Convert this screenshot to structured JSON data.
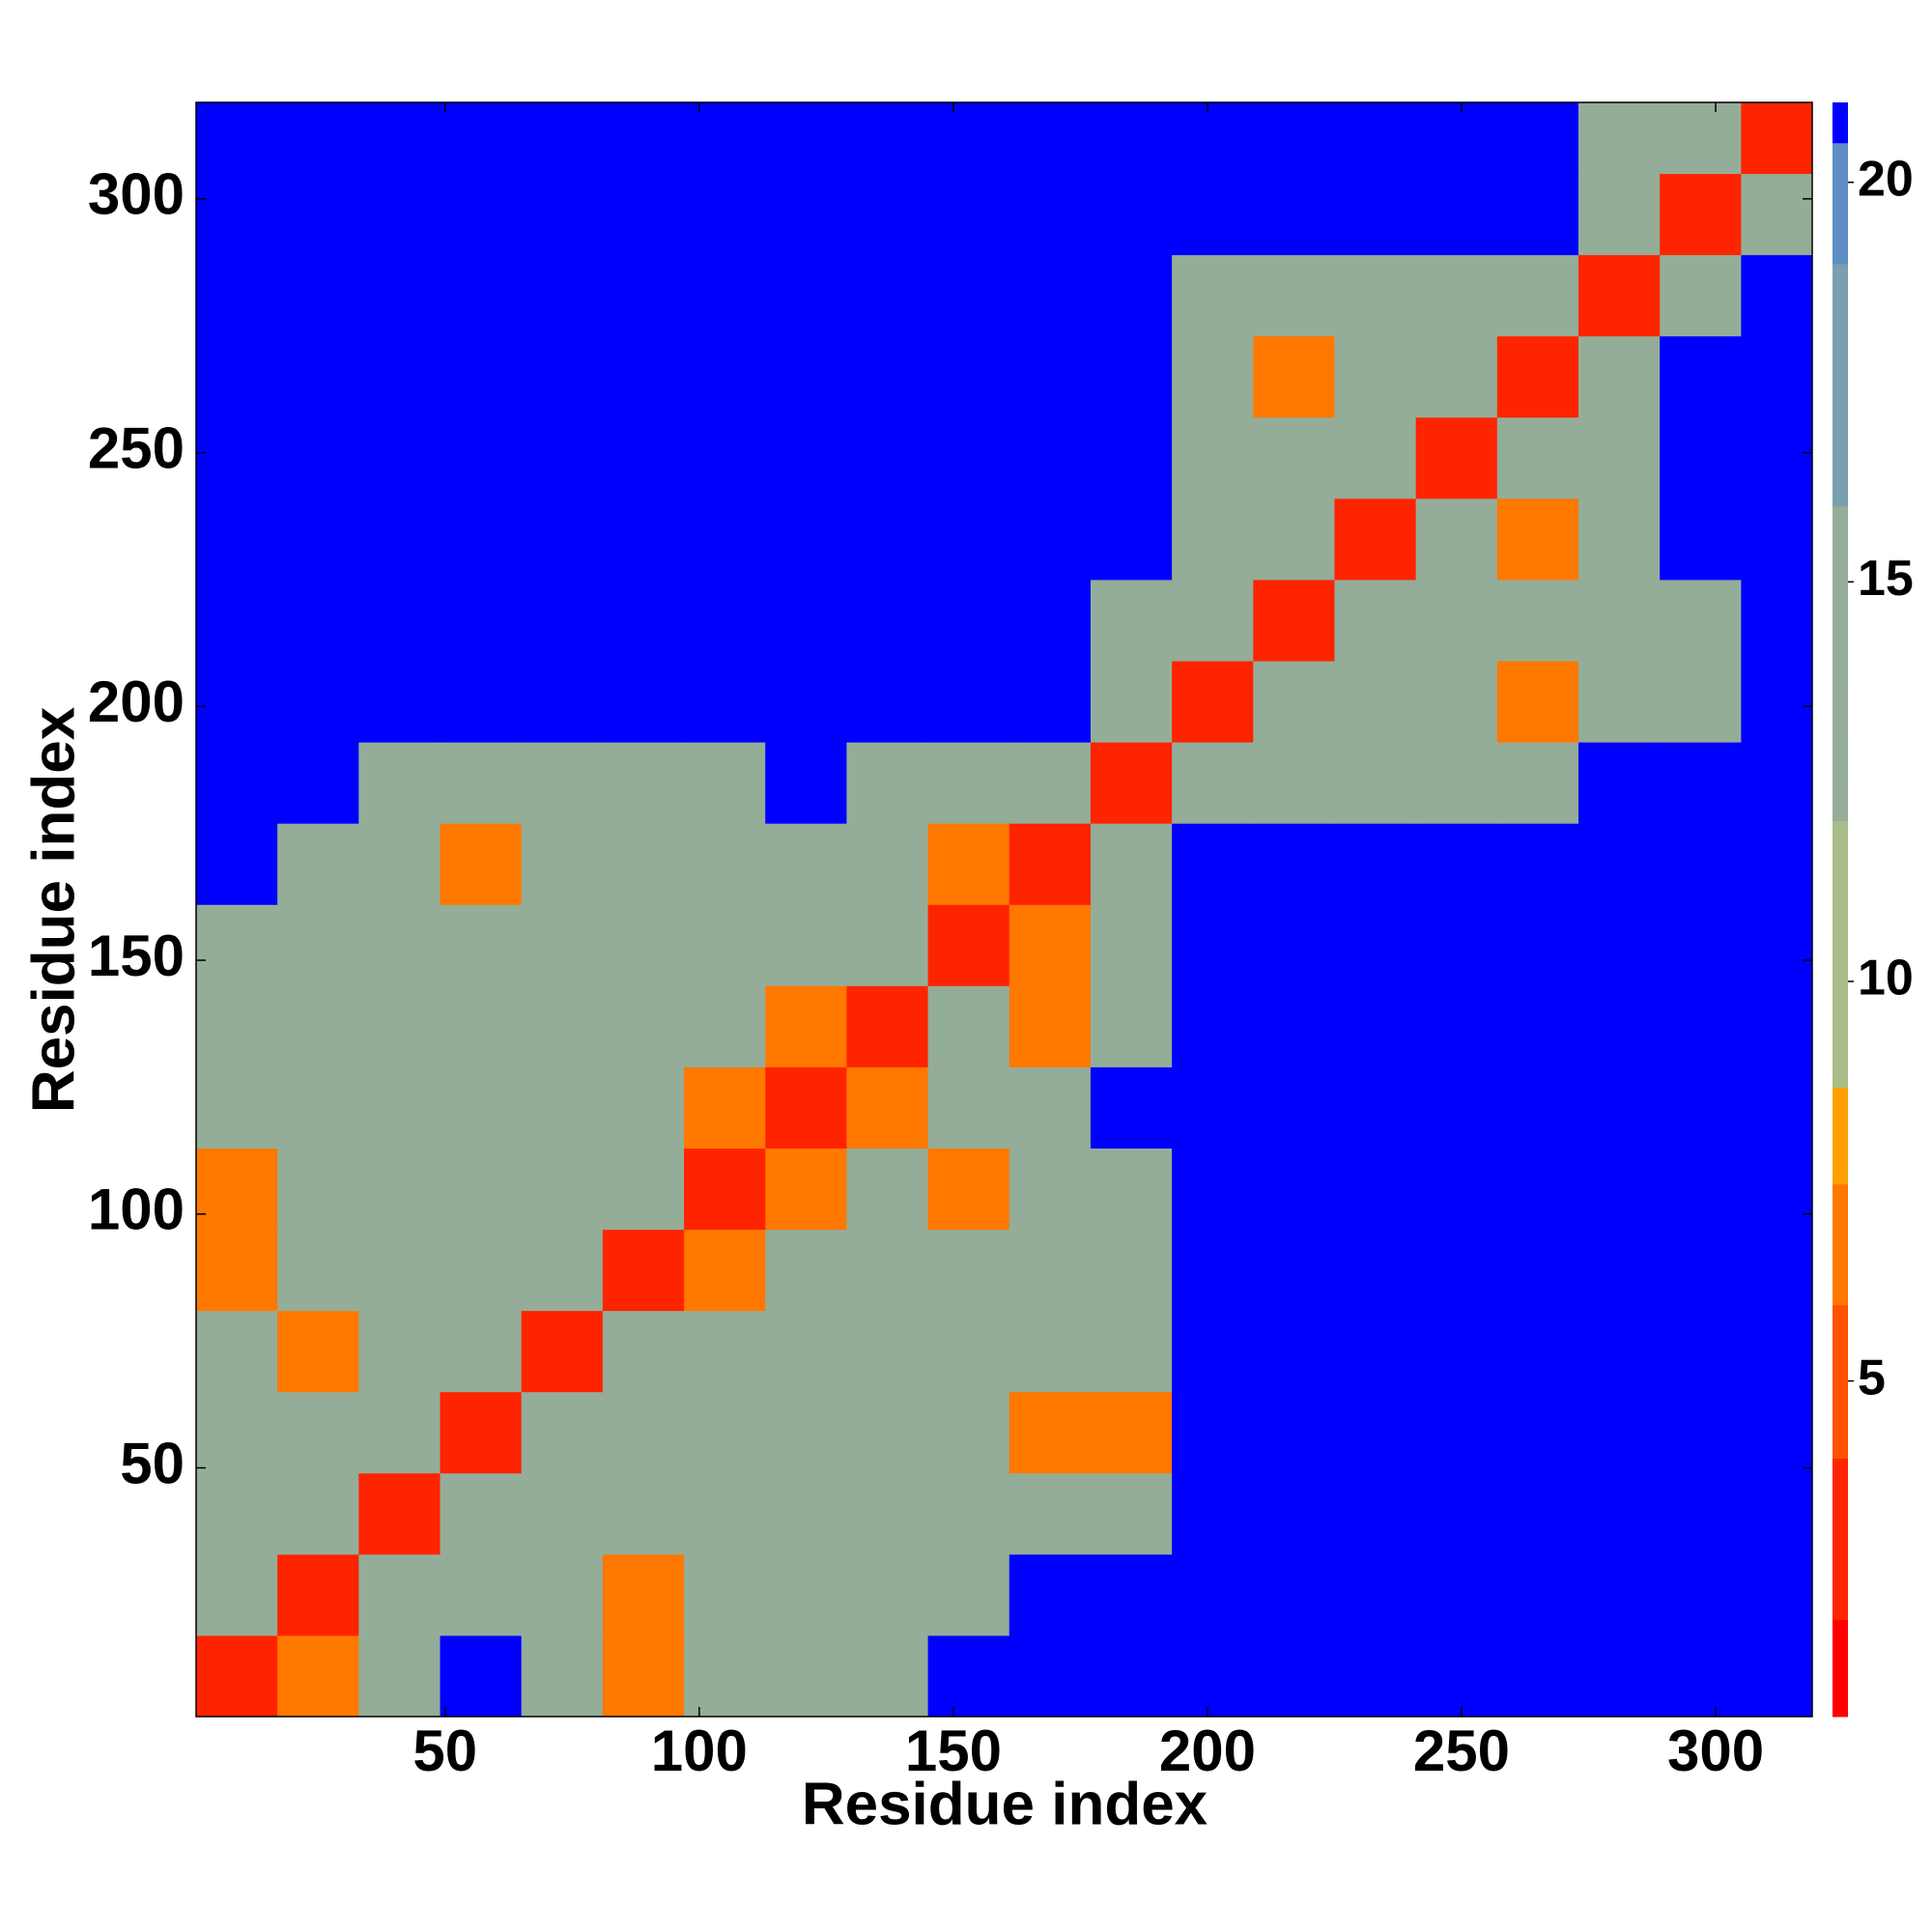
{
  "chart_data": {
    "type": "heatmap",
    "xlabel": "Residue index",
    "ylabel": "Residue index",
    "xlim": [
      1,
      319
    ],
    "ylim": [
      1,
      319
    ],
    "xticks": [
      50,
      100,
      150,
      200,
      250,
      300
    ],
    "yticks": [
      50,
      100,
      150,
      200,
      250,
      300
    ],
    "xbins": [
      1,
      17,
      33,
      49,
      65,
      81,
      97,
      113,
      129,
      145,
      161,
      177,
      193,
      209,
      225,
      241,
      257,
      273,
      289,
      305,
      319
    ],
    "ybins": [
      1,
      17,
      33,
      49,
      65,
      81,
      97,
      113,
      129,
      145,
      161,
      177,
      193,
      209,
      225,
      241,
      257,
      273,
      289,
      305,
      319
    ],
    "values": [
      [
        3,
        7,
        14,
        21,
        14,
        7,
        14,
        14,
        14,
        21,
        21,
        21,
        21,
        21,
        21,
        21,
        21,
        21,
        21,
        21
      ],
      [
        14,
        3,
        14,
        14,
        14,
        7,
        14,
        14,
        14,
        14,
        21,
        21,
        21,
        21,
        21,
        21,
        21,
        21,
        21,
        21
      ],
      [
        14,
        14,
        3,
        14,
        14,
        14,
        14,
        14,
        14,
        14,
        14,
        14,
        21,
        21,
        21,
        21,
        21,
        21,
        21,
        21
      ],
      [
        14,
        14,
        14,
        3,
        14,
        14,
        14,
        14,
        14,
        14,
        7,
        7,
        21,
        21,
        21,
        21,
        21,
        21,
        21,
        21
      ],
      [
        14,
        7,
        14,
        14,
        3,
        14,
        14,
        14,
        14,
        14,
        14,
        14,
        21,
        21,
        21,
        21,
        21,
        21,
        21,
        21
      ],
      [
        7,
        14,
        14,
        14,
        14,
        3,
        7,
        14,
        14,
        14,
        14,
        14,
        21,
        21,
        21,
        21,
        21,
        21,
        21,
        21
      ],
      [
        7,
        14,
        14,
        14,
        14,
        14,
        3,
        7,
        14,
        7,
        14,
        14,
        21,
        21,
        21,
        21,
        21,
        21,
        21,
        21
      ],
      [
        14,
        14,
        14,
        14,
        14,
        14,
        7,
        3,
        7,
        14,
        14,
        21,
        21,
        21,
        21,
        21,
        21,
        21,
        21,
        21
      ],
      [
        14,
        14,
        14,
        14,
        14,
        14,
        14,
        7,
        3,
        14,
        7,
        14,
        21,
        21,
        21,
        21,
        21,
        21,
        21,
        21
      ],
      [
        14,
        14,
        14,
        14,
        14,
        14,
        14,
        14,
        14,
        3,
        7,
        14,
        21,
        21,
        21,
        21,
        21,
        21,
        21,
        21
      ],
      [
        21,
        14,
        14,
        7,
        14,
        14,
        14,
        14,
        14,
        7,
        3,
        14,
        21,
        21,
        21,
        21,
        21,
        21,
        21,
        21
      ],
      [
        21,
        21,
        14,
        14,
        14,
        14,
        14,
        21,
        14,
        14,
        14,
        3,
        14,
        14,
        14,
        14,
        14,
        21,
        21,
        21
      ],
      [
        21,
        21,
        21,
        21,
        21,
        21,
        21,
        21,
        21,
        21,
        21,
        14,
        3,
        14,
        14,
        14,
        7,
        14,
        14,
        21
      ],
      [
        21,
        21,
        21,
        21,
        21,
        21,
        21,
        21,
        21,
        21,
        21,
        14,
        14,
        3,
        14,
        14,
        14,
        14,
        14,
        21
      ],
      [
        21,
        21,
        21,
        21,
        21,
        21,
        21,
        21,
        21,
        21,
        21,
        21,
        14,
        14,
        3,
        14,
        7,
        14,
        21,
        21
      ],
      [
        21,
        21,
        21,
        21,
        21,
        21,
        21,
        21,
        21,
        21,
        21,
        21,
        14,
        14,
        14,
        3,
        14,
        14,
        21,
        21
      ],
      [
        21,
        21,
        21,
        21,
        21,
        21,
        21,
        21,
        21,
        21,
        21,
        21,
        14,
        7,
        14,
        14,
        3,
        14,
        21,
        21
      ],
      [
        21,
        21,
        21,
        21,
        21,
        21,
        21,
        21,
        21,
        21,
        21,
        21,
        14,
        14,
        14,
        14,
        14,
        3,
        14,
        21
      ],
      [
        21,
        21,
        21,
        21,
        21,
        21,
        21,
        21,
        21,
        21,
        21,
        21,
        21,
        21,
        21,
        21,
        21,
        14,
        3,
        14
      ],
      [
        21,
        21,
        21,
        21,
        21,
        21,
        21,
        21,
        21,
        21,
        21,
        21,
        21,
        21,
        21,
        21,
        21,
        14,
        14,
        3
      ]
    ],
    "colorbar": {
      "lim": [
        0.8,
        21
      ],
      "ticks": [
        5,
        10,
        15,
        20
      ]
    },
    "colorscale": [
      [
        0.8,
        "#ff0000"
      ],
      [
        2,
        "#ff2400"
      ],
      [
        4,
        "#ff5200"
      ],
      [
        6,
        "#ff7800"
      ],
      [
        7.5,
        "#ffa000"
      ],
      [
        8.7,
        "#a9bd8a"
      ],
      [
        12,
        "#94ad98"
      ],
      [
        16,
        "#7a9fae"
      ],
      [
        19,
        "#5f8fc4"
      ],
      [
        20.5,
        "#0000ff"
      ]
    ]
  }
}
